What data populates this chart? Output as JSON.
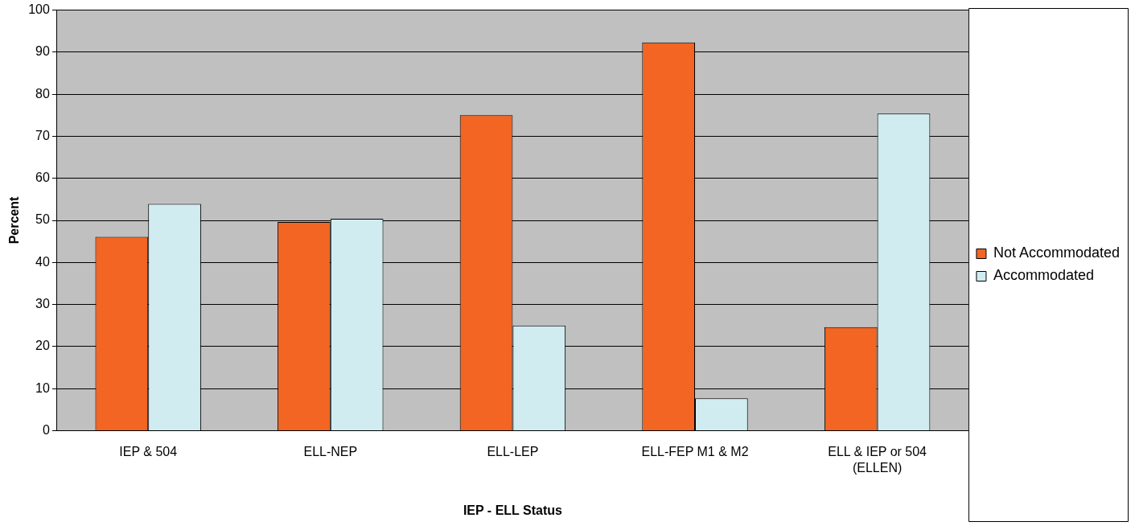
{
  "chart_data": {
    "type": "bar",
    "xlabel": "IEP - ELL Status",
    "ylabel": "Percent",
    "categories": [
      "IEP & 504",
      "ELL-NEP",
      "ELL-LEP",
      "ELL-FEP M1 & M2",
      "ELL & IEP or 504\n(ELLEN)"
    ],
    "series": [
      {
        "name": "Not Accommodated",
        "color": "#f26522",
        "values": [
          46.1,
          49.6,
          75,
          92.3,
          24.6
        ]
      },
      {
        "name": "Accommodated",
        "color": "#d0ecf0",
        "values": [
          53.9,
          50.4,
          25,
          7.7,
          75.4
        ]
      }
    ],
    "ylim": [
      0,
      100
    ],
    "yticks": [
      0,
      10,
      20,
      30,
      40,
      50,
      60,
      70,
      80,
      90,
      100
    ],
    "grid": "y",
    "legend": "right"
  }
}
